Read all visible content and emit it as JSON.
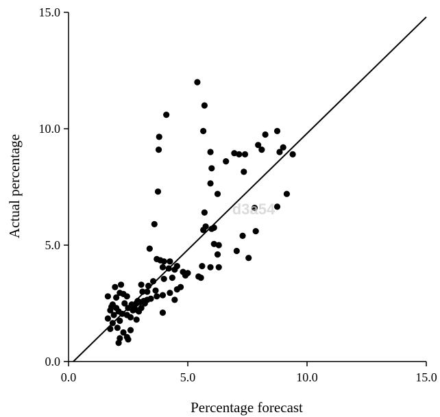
{
  "chart_data": {
    "type": "scatter",
    "title": "",
    "xlabel": "Percentage forecast",
    "ylabel": "Actual percentage",
    "xlim": [
      0,
      15
    ],
    "ylim": [
      0,
      15
    ],
    "x_ticks": [
      "0.0",
      "5.0",
      "10.0",
      "15.0"
    ],
    "y_ticks": [
      "0.0",
      "5.0",
      "10.0",
      "15.0"
    ],
    "grid": false,
    "legend": "none",
    "reference_line": {
      "from": [
        0.2,
        0
      ],
      "to": [
        15,
        14.8
      ]
    },
    "watermark": "d3a54",
    "colors": {
      "points": "#000000",
      "axes": "#000000",
      "line": "#000000"
    },
    "series": [
      {
        "points": [
          [
            5.4,
            12.0
          ],
          [
            5.7,
            11.0
          ],
          [
            4.1,
            10.6
          ],
          [
            5.65,
            9.9
          ],
          [
            3.8,
            9.65
          ],
          [
            3.78,
            9.1
          ],
          [
            5.95,
            9.0
          ],
          [
            6.0,
            8.3
          ],
          [
            5.95,
            7.65
          ],
          [
            3.75,
            7.3
          ],
          [
            6.6,
            8.6
          ],
          [
            6.95,
            8.95
          ],
          [
            7.15,
            8.9
          ],
          [
            7.4,
            8.9
          ],
          [
            7.35,
            8.15
          ],
          [
            8.25,
            9.75
          ],
          [
            8.75,
            9.9
          ],
          [
            7.95,
            9.3
          ],
          [
            8.1,
            9.1
          ],
          [
            8.85,
            9.0
          ],
          [
            9.0,
            9.2
          ],
          [
            9.4,
            8.9
          ],
          [
            6.25,
            7.2
          ],
          [
            9.15,
            7.2
          ],
          [
            7.8,
            6.6
          ],
          [
            8.75,
            6.65
          ],
          [
            5.7,
            6.4
          ],
          [
            5.75,
            5.8
          ],
          [
            5.65,
            5.65
          ],
          [
            6.0,
            5.7
          ],
          [
            6.1,
            5.75
          ],
          [
            3.6,
            5.9
          ],
          [
            7.85,
            5.6
          ],
          [
            7.3,
            5.4
          ],
          [
            6.1,
            5.05
          ],
          [
            6.3,
            5.0
          ],
          [
            3.4,
            4.85
          ],
          [
            7.05,
            4.75
          ],
          [
            6.25,
            4.6
          ],
          [
            7.55,
            4.45
          ],
          [
            3.7,
            4.4
          ],
          [
            3.85,
            4.35
          ],
          [
            4.0,
            4.3
          ],
          [
            4.25,
            4.3
          ],
          [
            4.55,
            4.1
          ],
          [
            3.95,
            4.05
          ],
          [
            4.2,
            4.0
          ],
          [
            5.6,
            4.1
          ],
          [
            5.95,
            4.05
          ],
          [
            6.3,
            4.05
          ],
          [
            4.45,
            3.95
          ],
          [
            4.8,
            3.85
          ],
          [
            5.0,
            3.8
          ],
          [
            4.9,
            3.7
          ],
          [
            5.45,
            3.65
          ],
          [
            5.55,
            3.6
          ],
          [
            4.35,
            3.6
          ],
          [
            4.0,
            3.55
          ],
          [
            3.55,
            3.45
          ],
          [
            3.05,
            3.3
          ],
          [
            3.35,
            3.25
          ],
          [
            4.7,
            3.2
          ],
          [
            4.55,
            3.1
          ],
          [
            3.65,
            3.05
          ],
          [
            3.3,
            3.0
          ],
          [
            3.1,
            3.0
          ],
          [
            4.25,
            2.95
          ],
          [
            3.95,
            2.85
          ],
          [
            3.7,
            2.8
          ],
          [
            3.45,
            2.7
          ],
          [
            3.3,
            2.65
          ],
          [
            3.15,
            2.6
          ],
          [
            4.45,
            2.65
          ],
          [
            2.9,
            2.6
          ],
          [
            3.0,
            2.55
          ],
          [
            3.2,
            2.5
          ],
          [
            2.85,
            2.5
          ],
          [
            2.65,
            2.45
          ],
          [
            2.45,
            2.8
          ],
          [
            2.2,
            3.3
          ],
          [
            1.95,
            3.2
          ],
          [
            2.15,
            2.95
          ],
          [
            2.3,
            2.9
          ],
          [
            2.0,
            2.75
          ],
          [
            1.65,
            2.8
          ],
          [
            1.85,
            2.45
          ],
          [
            2.35,
            2.5
          ],
          [
            2.5,
            2.3
          ],
          [
            2.7,
            2.2
          ],
          [
            2.9,
            2.2
          ],
          [
            3.05,
            2.3
          ],
          [
            2.1,
            2.15
          ],
          [
            2.25,
            2.05
          ],
          [
            2.45,
            2.0
          ],
          [
            2.6,
            1.9
          ],
          [
            2.85,
            1.8
          ],
          [
            2.0,
            2.3
          ],
          [
            1.75,
            2.2
          ],
          [
            1.8,
            2.35
          ],
          [
            1.9,
            2.0
          ],
          [
            1.65,
            1.85
          ],
          [
            2.15,
            1.75
          ],
          [
            1.85,
            1.65
          ],
          [
            1.75,
            1.4
          ],
          [
            2.05,
            1.45
          ],
          [
            2.6,
            1.35
          ],
          [
            2.3,
            1.25
          ],
          [
            2.45,
            1.05
          ],
          [
            2.15,
            1.0
          ],
          [
            2.5,
            0.95
          ],
          [
            2.1,
            0.8
          ],
          [
            3.95,
            2.1
          ],
          [
            2.75,
            2.35
          ],
          [
            2.95,
            2.15
          ]
        ]
      }
    ]
  }
}
